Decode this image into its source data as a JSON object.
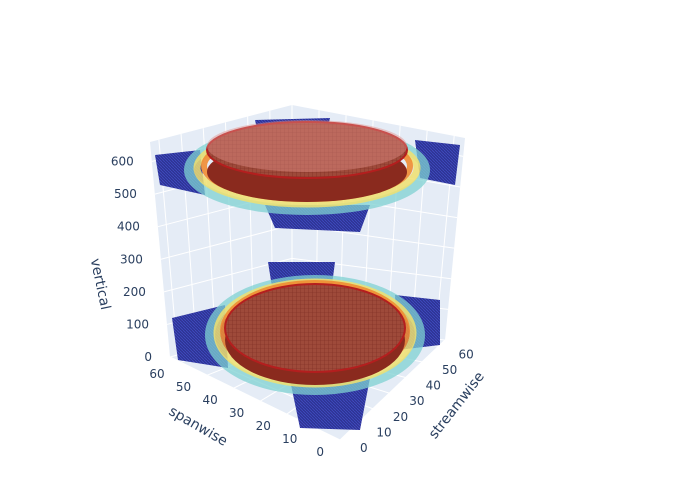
{
  "chart_data": {
    "type": "3d-isosurface",
    "title": "",
    "axes": {
      "x": {
        "label": "streamwise",
        "ticks": [
          "0",
          "10",
          "20",
          "30",
          "40",
          "50",
          "60"
        ],
        "range": [
          0,
          64
        ]
      },
      "y": {
        "label": "spanwise",
        "ticks": [
          "0",
          "10",
          "20",
          "30",
          "40",
          "50",
          "60"
        ],
        "range": [
          0,
          64
        ]
      },
      "z": {
        "label": "vertical",
        "ticks": [
          "0",
          "100",
          "200",
          "300",
          "400",
          "500",
          "600"
        ],
        "range": [
          0,
          660
        ]
      }
    },
    "surfaces": [
      {
        "layer": "lower",
        "z_center": 130
      },
      {
        "layer": "upper",
        "z_center": 520
      }
    ],
    "colorscale": [
      "#00007f",
      "#1e90c8",
      "#7fd2d2",
      "#f0e06e",
      "#f08c32",
      "#b41e1e"
    ],
    "background": "#e5ecf6",
    "grid": true
  }
}
